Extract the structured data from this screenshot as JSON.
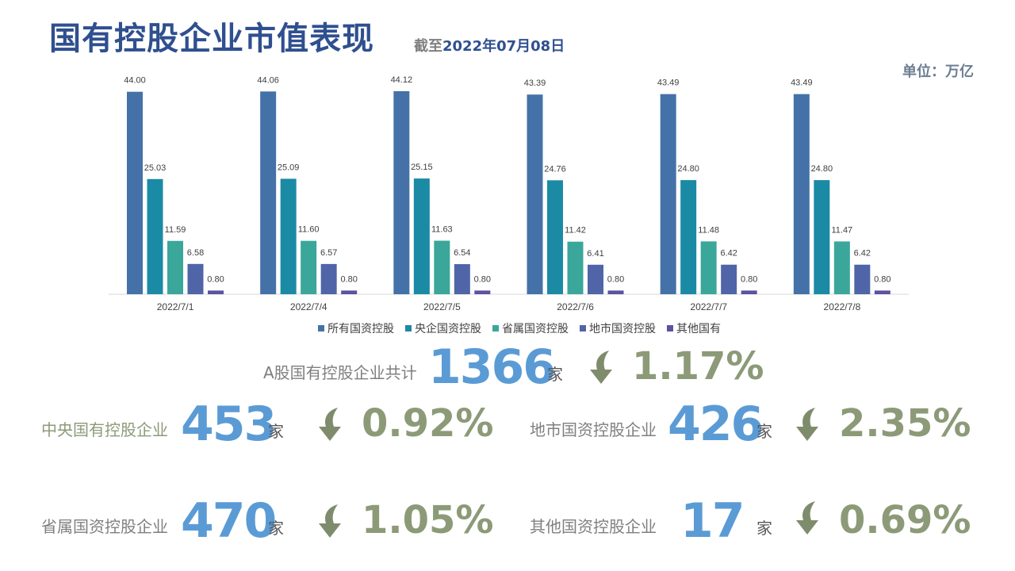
{
  "header": {
    "title": "国有控股企业市值表现",
    "subtitle_prefix": "截至",
    "subtitle_date": "2022年07月08日",
    "unit": "单位：万亿"
  },
  "chart_data": {
    "type": "bar",
    "categories": [
      "2022/7/1",
      "2022/7/4",
      "2022/7/5",
      "2022/7/6",
      "2022/7/7",
      "2022/7/8"
    ],
    "series": [
      {
        "name": "所有国资控股",
        "color": "#4472A8",
        "values": [
          44.0,
          44.06,
          44.12,
          43.39,
          43.49,
          43.49
        ]
      },
      {
        "name": "央企国资控股",
        "color": "#1B8AA5",
        "values": [
          25.03,
          25.09,
          25.15,
          24.76,
          24.8,
          24.8
        ]
      },
      {
        "name": "省属国资控股",
        "color": "#3AA79A",
        "values": [
          11.59,
          11.6,
          11.63,
          11.42,
          11.48,
          11.47
        ]
      },
      {
        "name": "地市国资控股",
        "color": "#4F65A8",
        "values": [
          6.58,
          6.57,
          6.54,
          6.41,
          6.42,
          6.42
        ]
      },
      {
        "name": "其他国有",
        "color": "#5B52A0",
        "values": [
          0.8,
          0.8,
          0.8,
          0.8,
          0.8,
          0.8
        ]
      }
    ],
    "ylim": [
      0,
      44.12
    ],
    "legend_position": "bottom",
    "grid": false
  },
  "stats": {
    "total": {
      "label": "A股国有控股企业共计",
      "count": "1366",
      "unit": "家",
      "change": "1.17%",
      "direction": "down"
    },
    "central": {
      "label": "中央国有控股企业",
      "count": "453",
      "unit": "家",
      "change": "0.92%",
      "direction": "down"
    },
    "municipal": {
      "label": "地市国资控股企业",
      "count": "426",
      "unit": "家",
      "change": "2.35%",
      "direction": "down"
    },
    "provincial": {
      "label": "省属国资控股企业",
      "count": "470",
      "unit": "家",
      "change": "1.05%",
      "direction": "down"
    },
    "other": {
      "label": "其他国资控股企业",
      "count": "17",
      "unit": "家",
      "change": "0.69%",
      "direction": "down"
    }
  },
  "colors": {
    "title": "#2F4F8F",
    "number": "#5B9BD5",
    "percent": "#8C9A78",
    "arrow": "#7E8C6C",
    "central_label": "#8C9A78"
  }
}
